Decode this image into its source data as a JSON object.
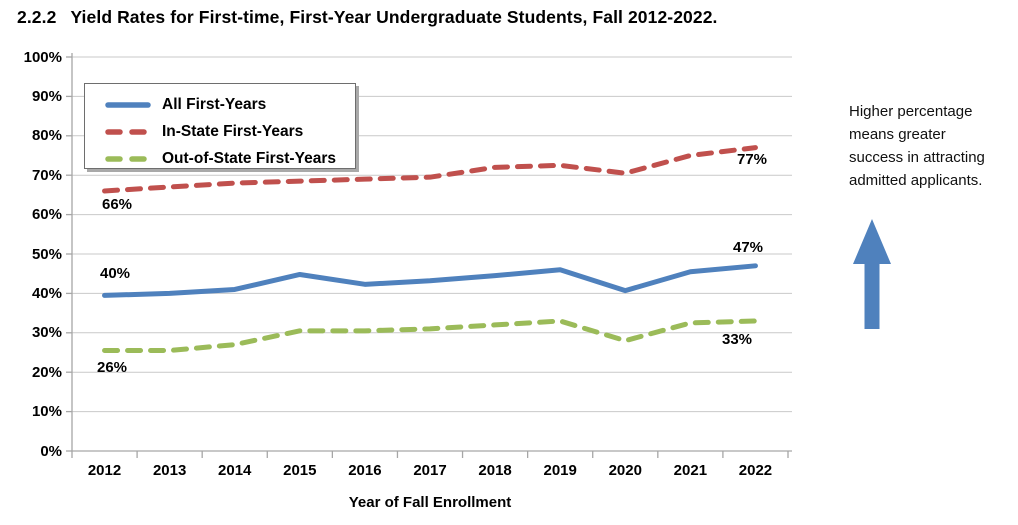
{
  "title": {
    "number": "2.2.2",
    "text": "Yield Rates for First-time, First-Year Undergraduate Students, Fall 2012-2022."
  },
  "chart_data": {
    "type": "line",
    "x": [
      2012,
      2013,
      2014,
      2015,
      2016,
      2017,
      2018,
      2019,
      2020,
      2021,
      2022
    ],
    "xlabel": "Year of Fall Enrollment",
    "ylabel": "",
    "ylim": [
      0,
      100
    ],
    "y_tick_labels": [
      "100%",
      "90%",
      "80%",
      "70%",
      "60%",
      "50%",
      "40%",
      "30%",
      "20%",
      "10%",
      "0%"
    ],
    "grid": true,
    "legend_position": "top-left-inside",
    "series": [
      {
        "name": "All First-Years",
        "color": "#4F81BD",
        "style": "solid",
        "values": [
          39.5,
          40,
          41,
          44.8,
          42.3,
          43.2,
          44.5,
          46,
          40.7,
          45.5,
          47
        ]
      },
      {
        "name": "In-State First-Years",
        "color": "#C0504D",
        "style": "dashed",
        "values": [
          66,
          67,
          68,
          68.5,
          69,
          69.5,
          72,
          72.5,
          70.5,
          75,
          77
        ]
      },
      {
        "name": "Out-of-State First-Years",
        "color": "#9BBB59",
        "style": "dashed",
        "values": [
          25.5,
          25.5,
          27,
          30.5,
          30.5,
          31,
          32,
          33,
          28,
          32.5,
          33
        ]
      }
    ],
    "point_labels": [
      {
        "series": "In-State First-Years",
        "year": 2012,
        "text": "66%"
      },
      {
        "series": "All First-Years",
        "year": 2012,
        "text": "40%"
      },
      {
        "series": "Out-of-State First-Years",
        "year": 2012,
        "text": "26%"
      },
      {
        "series": "In-State First-Years",
        "year": 2022,
        "text": "77%"
      },
      {
        "series": "All First-Years",
        "year": 2022,
        "text": "47%"
      },
      {
        "series": "Out-of-State First-Years",
        "year": 2022,
        "text": "33%"
      }
    ]
  },
  "annotation": {
    "text": "Higher percentage means greater success in attracting admitted applicants.",
    "arrow_icon": "up-arrow",
    "arrow_color": "#4F81BD"
  },
  "colors": {
    "gridline": "#C9C9C9",
    "axis": "#A6A6A6",
    "text": "#000000"
  }
}
